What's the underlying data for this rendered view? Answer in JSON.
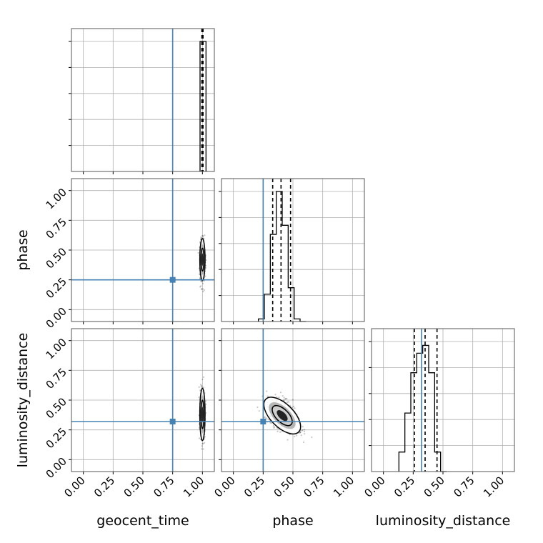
{
  "chart_data": {
    "type": "corner",
    "parameters": [
      "geocent_time",
      "phase",
      "luminosity_distance"
    ],
    "axis_labels": {
      "x": [
        "geocent_time",
        "phase",
        "luminosity_distance"
      ],
      "y": [
        "phase",
        "luminosity_distance"
      ]
    },
    "tick_labels": [
      "0.00",
      "0.25",
      "0.50",
      "0.75",
      "1.00"
    ],
    "ticks": [
      0.0,
      0.25,
      0.5,
      0.75,
      1.0
    ],
    "range": [
      -0.1,
      1.1
    ],
    "grid": true,
    "truths": {
      "geocent_time": 0.75,
      "phase": 0.25,
      "luminosity_distance": 0.32
    },
    "truth_color": "#4682b4",
    "histogram_color": "#000000",
    "quantiles": {
      "geocent_time": [
        0.995,
        1.0,
        1.005
      ],
      "phase": [
        0.33,
        0.4,
        0.48
      ],
      "luminosity_distance": [
        0.26,
        0.35,
        0.45
      ]
    },
    "histograms": {
      "geocent_time": {
        "bin_edges": [
          0.98,
          1.03
        ],
        "counts": [
          1.0
        ]
      },
      "phase": {
        "bin_edges": [
          0.21,
          0.26,
          0.31,
          0.36,
          0.41,
          0.46,
          0.51,
          0.56,
          0.61
        ],
        "counts": [
          0.02,
          0.21,
          0.67,
          1.0,
          0.74,
          0.26,
          0.02,
          0.0
        ]
      },
      "luminosity_distance": {
        "bin_edges": [
          0.13,
          0.18,
          0.23,
          0.28,
          0.33,
          0.38,
          0.43,
          0.48,
          0.53
        ],
        "counts": [
          0.15,
          0.45,
          0.76,
          0.91,
          0.97,
          0.76,
          0.15,
          0.0
        ]
      }
    },
    "scatter_2d": [
      {
        "x": "geocent_time",
        "y": "phase",
        "center": [
          1.0,
          0.42
        ],
        "spread": [
          0.01,
          0.08
        ]
      },
      {
        "x": "geocent_time",
        "y": "luminosity_distance",
        "center": [
          1.0,
          0.38
        ],
        "spread": [
          0.01,
          0.1
        ]
      },
      {
        "x": "phase",
        "y": "luminosity_distance",
        "center": [
          0.41,
          0.37
        ],
        "spread": [
          0.07,
          0.07
        ],
        "correlation": -0.6
      }
    ]
  }
}
